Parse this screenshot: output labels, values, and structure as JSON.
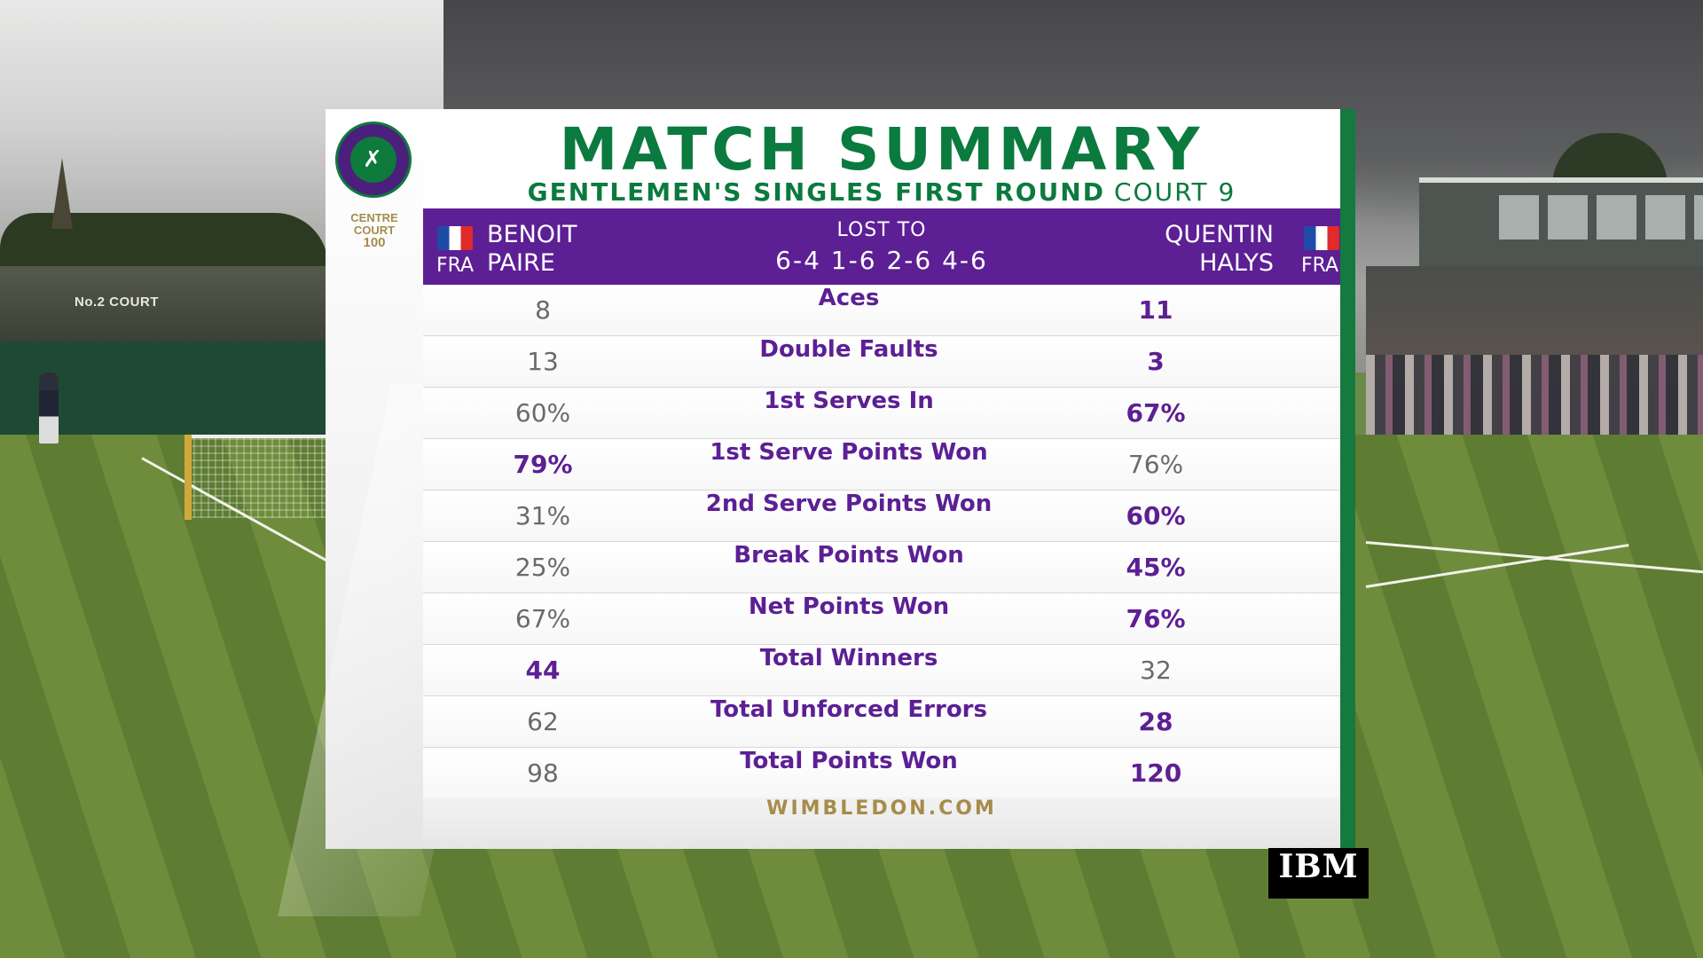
{
  "header": {
    "title": "MATCH SUMMARY",
    "subtitle": "GENTLEMEN'S SINGLES FIRST ROUND",
    "court": "COURT 9"
  },
  "branding": {
    "centre_court_line1": "CENTRE",
    "centre_court_line2": "COURT",
    "centre_court_line3": "100",
    "website": "WIMBLEDON.COM",
    "sponsor": "IBM",
    "background_sign": "No.2 COURT",
    "logo_icon": "wimbledon-crossed-racquets-logo"
  },
  "match": {
    "player1": {
      "first": "BENOIT",
      "last": "PAIRE",
      "nation": "FRA"
    },
    "player2": {
      "first": "QUENTIN",
      "last": "HALYS",
      "nation": "FRA"
    },
    "result_label": "LOST TO",
    "score": "6-4 1-6 2-6 4-6"
  },
  "stats": [
    {
      "label": "Aces",
      "p1": "8",
      "p2": "11",
      "winner": "p2"
    },
    {
      "label": "Double Faults",
      "p1": "13",
      "p2": "3",
      "winner": "p2"
    },
    {
      "label": "1st Serves In",
      "p1": "60%",
      "p2": "67%",
      "winner": "p2"
    },
    {
      "label": "1st Serve Points Won",
      "p1": "79%",
      "p2": "76%",
      "winner": "p1"
    },
    {
      "label": "2nd Serve Points Won",
      "p1": "31%",
      "p2": "60%",
      "winner": "p2"
    },
    {
      "label": "Break Points Won",
      "p1": "25%",
      "p2": "45%",
      "winner": "p2"
    },
    {
      "label": "Net Points Won",
      "p1": "67%",
      "p2": "76%",
      "winner": "p2"
    },
    {
      "label": "Total Winners",
      "p1": "44",
      "p2": "32",
      "winner": "p1"
    },
    {
      "label": "Total Unforced Errors",
      "p1": "62",
      "p2": "28",
      "winner": "p2"
    },
    {
      "label": "Total Points Won",
      "p1": "98",
      "p2": "120",
      "winner": "p2"
    }
  ],
  "colors": {
    "purple": "#5c1f94",
    "green": "#0b7a3e",
    "gold": "#a68c4a",
    "loser_grey": "#6a6a6a"
  }
}
